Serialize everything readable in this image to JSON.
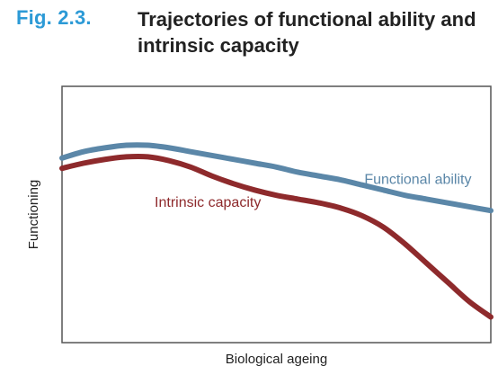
{
  "figure": {
    "label": "Fig. 2.3.",
    "title": "Trajectories of functional ability and intrinsic capacity"
  },
  "chart_data": {
    "type": "line",
    "title": "Trajectories of functional ability and intrinsic capacity",
    "xlabel": "Biological ageing",
    "ylabel": "Functioning",
    "xlim": [
      0,
      100
    ],
    "ylim": [
      0,
      100
    ],
    "ticks": "none",
    "grid": false,
    "legend": "inline labels",
    "series": [
      {
        "name": "Functional ability",
        "color": "#5b87a8",
        "x": [
          0,
          5,
          10,
          15,
          20,
          25,
          30,
          35,
          40,
          45,
          50,
          55,
          60,
          65,
          70,
          75,
          80,
          85,
          90,
          95,
          100
        ],
        "y": [
          72,
          74.5,
          76,
          77,
          77,
          76,
          74.5,
          73,
          71.5,
          70,
          68.5,
          66.5,
          65,
          63.5,
          61.5,
          59.5,
          57.5,
          56,
          54.5,
          53,
          51.5
        ]
      },
      {
        "name": "Intrinsic capacity",
        "color": "#8e2a2c",
        "x": [
          0,
          5,
          10,
          15,
          20,
          25,
          30,
          35,
          40,
          45,
          50,
          55,
          60,
          65,
          70,
          75,
          80,
          85,
          90,
          95,
          100
        ],
        "y": [
          68,
          70,
          71.5,
          72.5,
          72.5,
          71,
          68.5,
          65,
          62,
          59.5,
          57.5,
          56,
          54.5,
          52.5,
          49.5,
          45,
          38.5,
          31,
          23.5,
          16,
          10
        ]
      }
    ]
  }
}
